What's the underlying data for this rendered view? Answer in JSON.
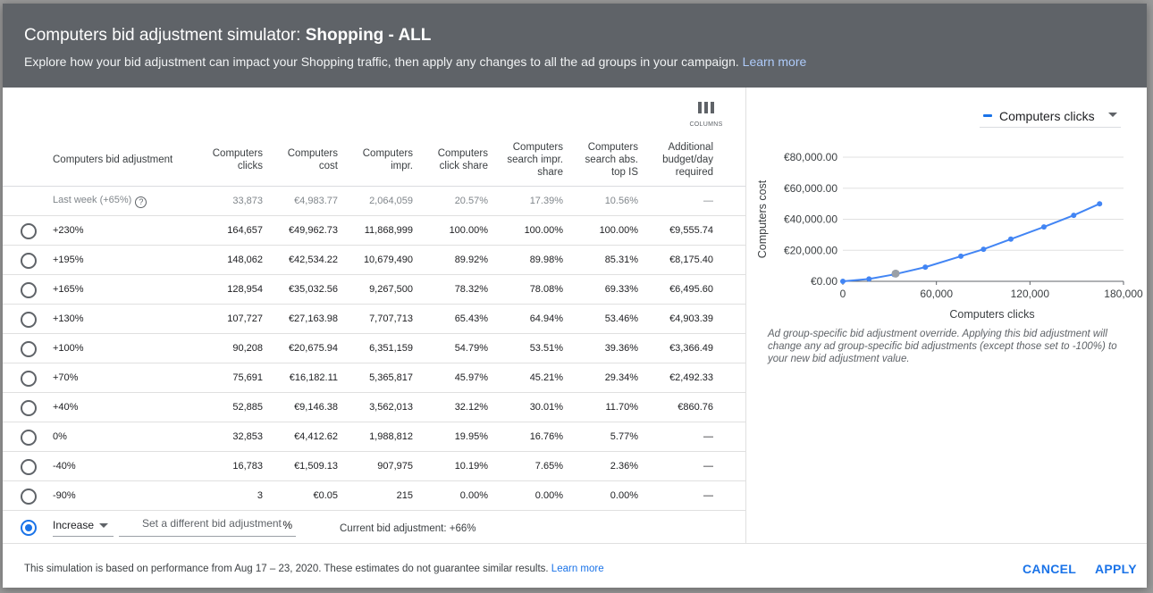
{
  "header": {
    "title_prefix": "Computers bid adjustment simulator: ",
    "title_campaign": "Shopping - ALL",
    "subtitle": "Explore how your bid adjustment can impact your Shopping traffic, then apply any changes to all the ad groups in your campaign. ",
    "learn_more": "Learn more"
  },
  "table": {
    "columns_button_label": "COLUMNS",
    "headers": [
      [
        "Computers bid adjustment"
      ],
      [
        "Computers",
        "clicks"
      ],
      [
        "Computers",
        "cost"
      ],
      [
        "Computers",
        "impr."
      ],
      [
        "Computers",
        "click share"
      ],
      [
        "Computers",
        "search impr.",
        "share"
      ],
      [
        "Computers",
        "search abs.",
        "top IS"
      ],
      [
        "Additional",
        "budget/day",
        "required"
      ]
    ],
    "last_week": [
      "Last week (+65%)",
      "33,873",
      "€4,983.77",
      "2,064,059",
      "20.57%",
      "17.39%",
      "10.56%",
      "—"
    ],
    "rows": [
      [
        "+230%",
        "164,657",
        "€49,962.73",
        "11,868,999",
        "100.00%",
        "100.00%",
        "100.00%",
        "€9,555.74"
      ],
      [
        "+195%",
        "148,062",
        "€42,534.22",
        "10,679,490",
        "89.92%",
        "89.98%",
        "85.31%",
        "€8,175.40"
      ],
      [
        "+165%",
        "128,954",
        "€35,032.56",
        "9,267,500",
        "78.32%",
        "78.08%",
        "69.33%",
        "€6,495.60"
      ],
      [
        "+130%",
        "107,727",
        "€27,163.98",
        "7,707,713",
        "65.43%",
        "64.94%",
        "53.46%",
        "€4,903.39"
      ],
      [
        "+100%",
        "90,208",
        "€20,675.94",
        "6,351,159",
        "54.79%",
        "53.51%",
        "39.36%",
        "€3,366.49"
      ],
      [
        "+70%",
        "75,691",
        "€16,182.11",
        "5,365,817",
        "45.97%",
        "45.21%",
        "29.34%",
        "€2,492.33"
      ],
      [
        "+40%",
        "52,885",
        "€9,146.38",
        "3,562,013",
        "32.12%",
        "30.01%",
        "11.70%",
        "€860.76"
      ],
      [
        "0%",
        "32,853",
        "€4,412.62",
        "1,988,812",
        "19.95%",
        "16.76%",
        "5.77%",
        "—"
      ],
      [
        "-40%",
        "16,783",
        "€1,509.13",
        "907,975",
        "10.19%",
        "7.65%",
        "2.36%",
        "—"
      ],
      [
        "-90%",
        "3",
        "€0.05",
        "215",
        "0.00%",
        "0.00%",
        "0.00%",
        "—"
      ]
    ],
    "custom": {
      "direction": "Increase",
      "placeholder": "Set a different bid adjustment",
      "unit": "%",
      "current": "Current bid adjustment: +66%"
    }
  },
  "chart_panel": {
    "metric_selector": "Computers clicks",
    "note": "Ad group-specific bid adjustment override. Applying this bid adjustment will change any ad group-specific bid adjustments (except those set to -100%) to your new bid adjustment value."
  },
  "chart_data": {
    "type": "line",
    "xlabel": "Computers clicks",
    "ylabel": "Computers cost",
    "xlim": [
      0,
      180000
    ],
    "ylim": [
      0,
      80000
    ],
    "x_ticks": [
      "0",
      "60,000",
      "120,000",
      "180,000"
    ],
    "y_ticks": [
      "€0.00",
      "€20,000.00",
      "€40,000.00",
      "€60,000.00",
      "€80,000.00"
    ],
    "series": [
      {
        "color": "#4285f4",
        "points": [
          [
            3,
            0.05
          ],
          [
            16783,
            1509.13
          ],
          [
            32853,
            4412.62
          ],
          [
            52885,
            9146.38
          ],
          [
            75691,
            16182.11
          ],
          [
            90208,
            20675.94
          ],
          [
            107727,
            27163.98
          ],
          [
            128954,
            35032.56
          ],
          [
            148062,
            42534.22
          ],
          [
            164657,
            49962.73
          ]
        ]
      }
    ],
    "current_point": [
      33873,
      4983.77
    ],
    "current_point_color": "#9aa0a6"
  },
  "footer": {
    "note": "This simulation is based on performance from Aug 17 – 23, 2020. These estimates do not guarantee similar results. ",
    "learn_more": "Learn more",
    "cancel": "CANCEL",
    "apply": "APPLY"
  }
}
